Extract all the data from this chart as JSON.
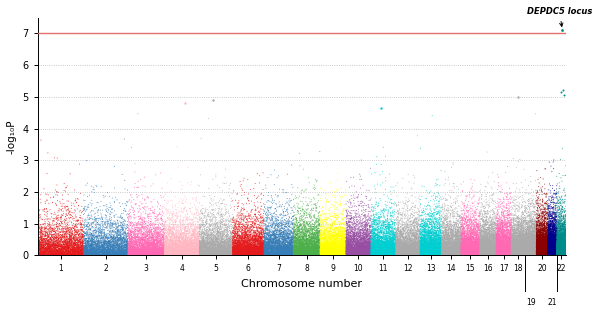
{
  "title": "",
  "xlabel": "Chromosome number",
  "ylabel": "-log₁₀P",
  "ylim": [
    0,
    7.5
  ],
  "yticks": [
    0,
    1,
    2,
    3,
    4,
    5,
    6,
    7
  ],
  "significance_line": 7.0,
  "significance_color": "#e07070",
  "background_color": "#ffffff",
  "grid_color": "#bbbbbb",
  "annotation_text": "DEPDC5 locus",
  "chr_colors": [
    "#e41a1c",
    "#377eb8",
    "#ff69b4",
    "#ffb6c1",
    "#aaaaaa",
    "#e41a1c",
    "#377eb8",
    "#4daf4a",
    "#ffff00",
    "#984ea3",
    "#00ced1",
    "#aaaaaa",
    "#00ced1",
    "#aaaaaa",
    "#ff69b4",
    "#aaaaaa",
    "#ff69b4",
    "#aaaaaa",
    "#aaaaaa",
    "#8b0000",
    "#00008b",
    "#008b8b"
  ],
  "chr_sizes": [
    249,
    242,
    198,
    190,
    181,
    171,
    159,
    146,
    141,
    136,
    135,
    133,
    115,
    107,
    102,
    90,
    81,
    78,
    59,
    63,
    48,
    51
  ],
  "seed": 42,
  "n_points_per_chr": 4000
}
